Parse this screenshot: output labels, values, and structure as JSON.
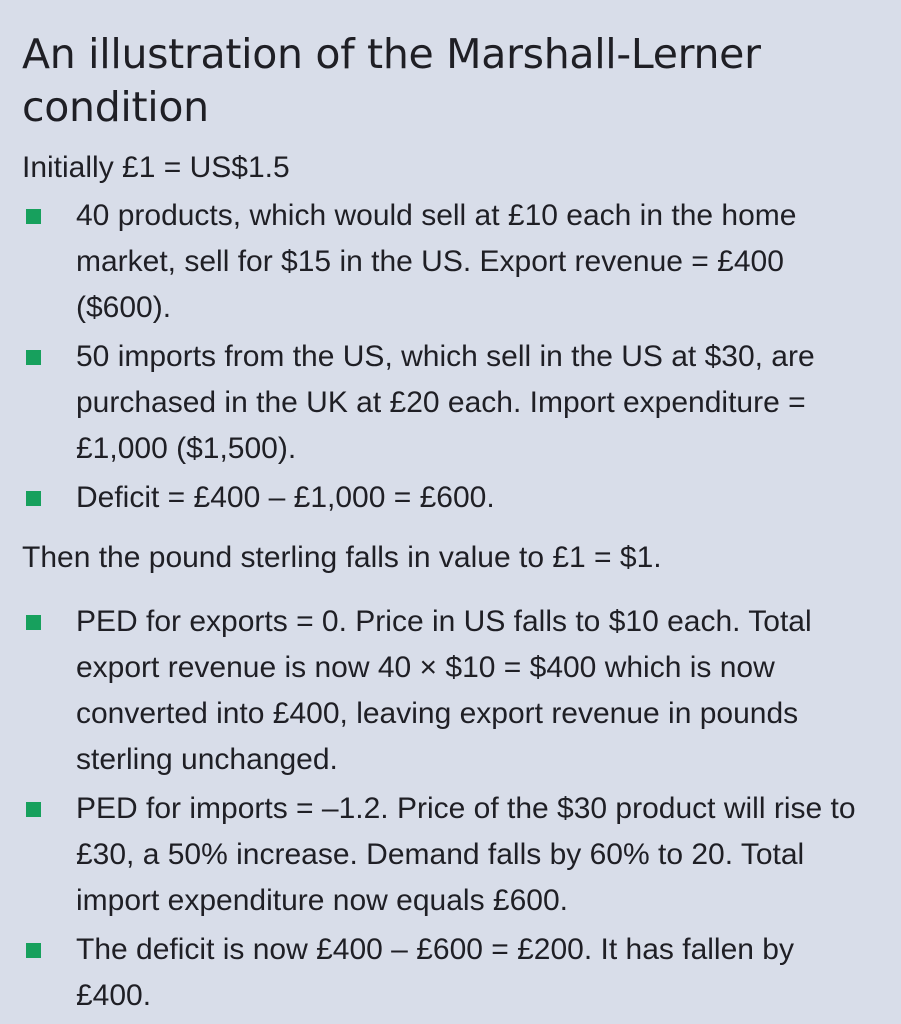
{
  "title": "An illustration of the Marshall-Lerner condition",
  "initial_label": "Initially £1 = US$1.5",
  "initial_bullets": [
    "40 products, which would sell at £10 each in the home market, sell for $15 in the US. Export revenue = £400 ($600).",
    "50 imports from the US, which sell in the US at $30, are purchased in the UK at £20 each. Import expenditure = £1,000 ($1,500).",
    "Deficit = £400 – £1,000 = £600."
  ],
  "then_label": "Then the pound sterling falls in value to £1 = $1.",
  "then_bullets": [
    "PED for exports = 0. Price in US falls to $10 each. Total export revenue is now 40 × $10 = $400 which is now converted into £400, leaving export revenue in pounds sterling unchanged.",
    "PED for imports = –1.2. Price of the $30 product will rise to £30, a 50% increase. Demand falls by 60% to 20. Total import expenditure now equals £600.",
    "The deficit is now £400 – £600 = £200. It has fallen by £400."
  ],
  "colors": {
    "background": "#d8dde9",
    "bullet": "#17a05d",
    "text": "#1f1f25"
  }
}
